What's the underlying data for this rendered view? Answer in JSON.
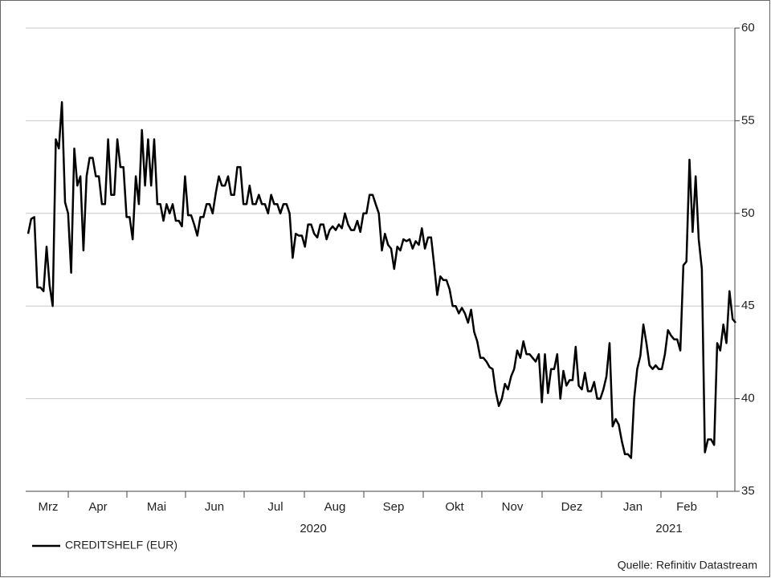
{
  "chart_data": {
    "type": "line",
    "series": [
      {
        "name": "CREDITSHELF (EUR)",
        "color": "#000000",
        "values": [
          48.9,
          49.7,
          49.8,
          46.0,
          46.0,
          45.8,
          48.2,
          46.1,
          45.0,
          54.0,
          53.5,
          56.0,
          50.6,
          50.0,
          46.8,
          53.5,
          51.5,
          52.0,
          48.0,
          52.0,
          53.0,
          53.0,
          52.0,
          52.0,
          50.5,
          50.5,
          54.0,
          51.0,
          51.0,
          54.0,
          52.5,
          52.5,
          49.8,
          49.8,
          48.6,
          52.0,
          50.5,
          54.5,
          51.5,
          54.0,
          51.5,
          54.0,
          50.5,
          50.5,
          49.6,
          50.5,
          50.0,
          50.5,
          49.6,
          49.6,
          49.3,
          52.0,
          49.9,
          49.9,
          49.4,
          48.8,
          49.8,
          49.8,
          50.5,
          50.5,
          50.0,
          51.1,
          52.0,
          51.5,
          51.5,
          52.0,
          51.0,
          51.0,
          52.5,
          52.5,
          50.5,
          50.5,
          51.5,
          50.5,
          50.5,
          51.0,
          50.5,
          50.5,
          50.0,
          51.0,
          50.5,
          50.5,
          50.0,
          50.5,
          50.5,
          50.0,
          47.6,
          48.9,
          48.8,
          48.8,
          48.2,
          49.4,
          49.4,
          48.9,
          48.7,
          49.4,
          49.4,
          48.6,
          49.1,
          49.3,
          49.1,
          49.4,
          49.2,
          50.0,
          49.4,
          49.1,
          49.1,
          49.6,
          49.0,
          50.0,
          50.0,
          51.0,
          51.0,
          50.5,
          50.0,
          48.0,
          48.9,
          48.3,
          48.1,
          47.0,
          48.2,
          48.0,
          48.6,
          48.5,
          48.6,
          48.1,
          48.5,
          48.3,
          49.2,
          48.1,
          48.7,
          48.7,
          47.2,
          45.6,
          46.6,
          46.4,
          46.4,
          45.9,
          45.0,
          45.0,
          44.6,
          44.9,
          44.6,
          44.1,
          44.8,
          43.6,
          43.1,
          42.2,
          42.2,
          42.0,
          41.7,
          41.6,
          40.4,
          39.6,
          40.0,
          40.8,
          40.5,
          41.2,
          41.6,
          42.6,
          42.2,
          43.1,
          42.4,
          42.4,
          42.2,
          42.0,
          42.4,
          39.8,
          42.4,
          40.3,
          41.6,
          41.6,
          42.4,
          40.0,
          41.5,
          40.7,
          41.0,
          41.0,
          42.8,
          40.7,
          40.5,
          41.4,
          40.4,
          40.4,
          40.9,
          40.0,
          40.0,
          40.5,
          41.2,
          43.0,
          38.5,
          38.9,
          38.6,
          37.7,
          37.0,
          37.0,
          36.8,
          40.0,
          41.6,
          42.3,
          44.0,
          43.0,
          41.8,
          41.6,
          41.8,
          41.6,
          41.6,
          42.4,
          43.7,
          43.4,
          43.2,
          43.2,
          42.6,
          47.2,
          47.4,
          52.9,
          49.0,
          52.0,
          48.6,
          47.0,
          37.1,
          37.8,
          37.8,
          37.5,
          43.0,
          42.6,
          44.0,
          43.0,
          45.8,
          44.3,
          44.1
        ]
      }
    ],
    "months": [
      "Mrz",
      "Apr",
      "Mai",
      "Jun",
      "Jul",
      "Aug",
      "Sep",
      "Okt",
      "Nov",
      "Dez",
      "Jan",
      "Feb"
    ],
    "years": [
      "2020",
      "2021"
    ],
    "ylim": [
      35,
      60
    ],
    "yticks": [
      35,
      40,
      45,
      50,
      55,
      60
    ],
    "grid": true,
    "source": "Quelle: Refinitiv Datastream"
  }
}
